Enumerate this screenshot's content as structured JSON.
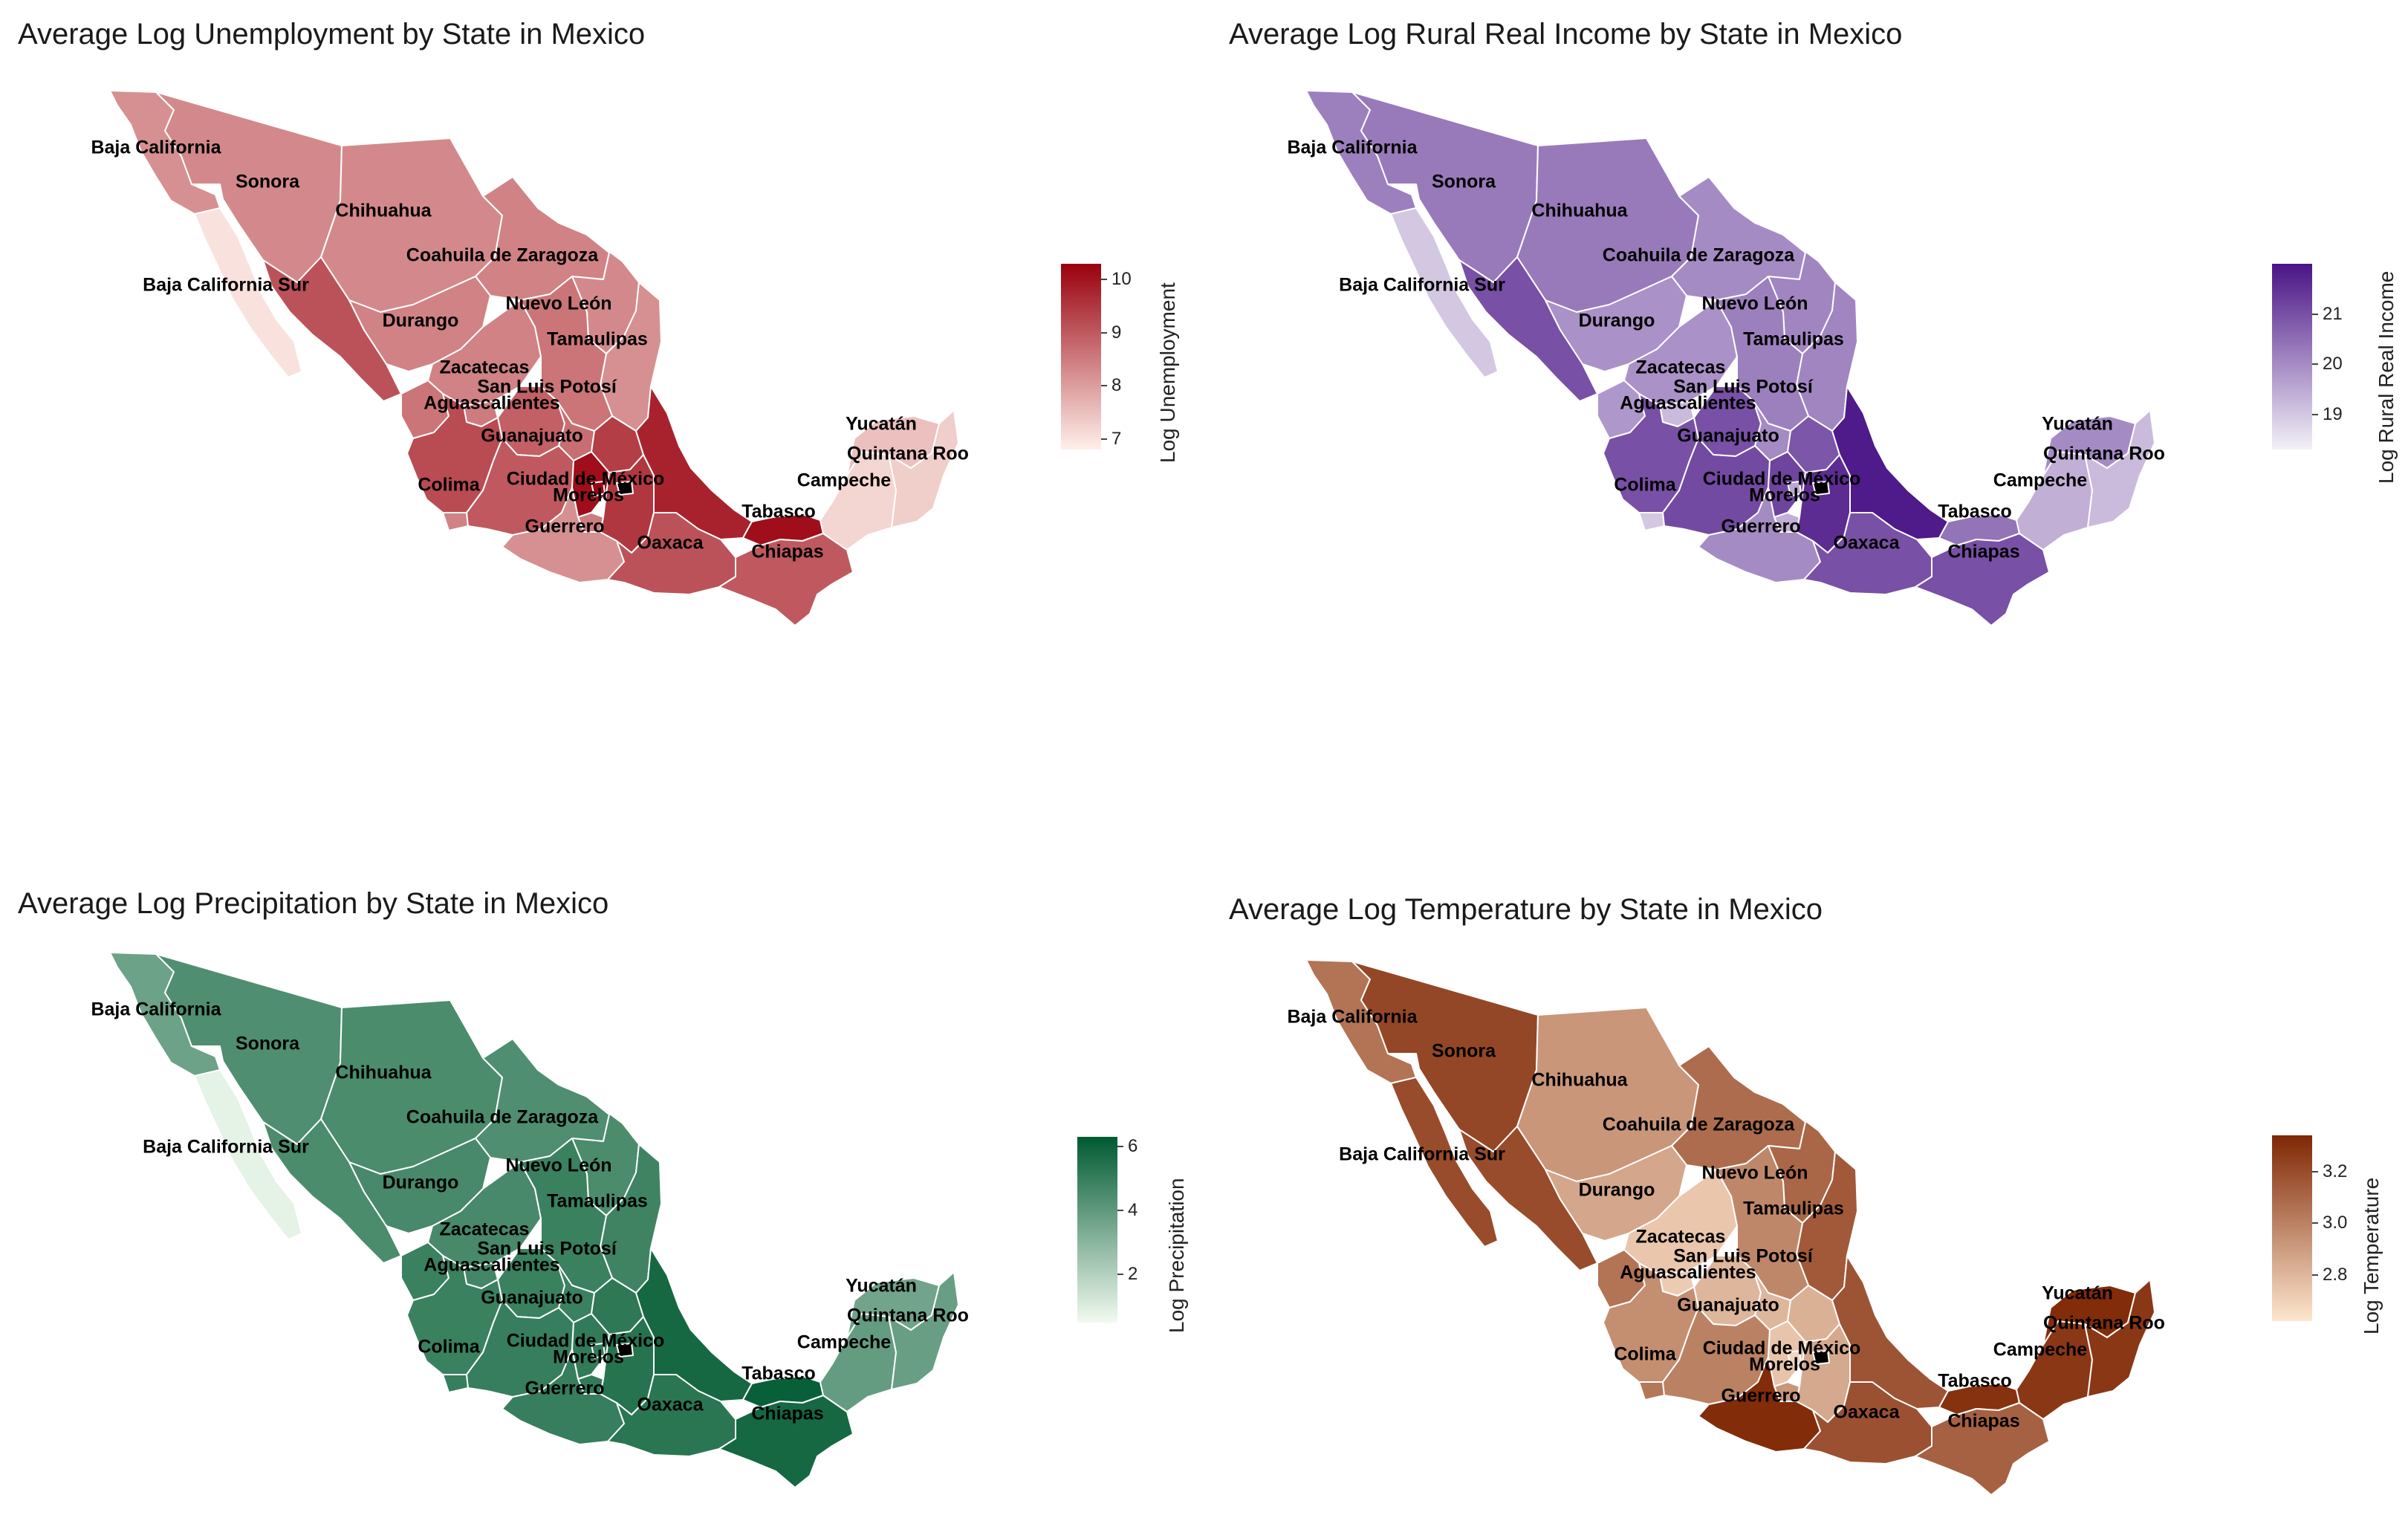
{
  "state_names": {
    "baja_california": "Baja California",
    "sonora": "Sonora",
    "chihuahua": "Chihuahua",
    "coahuila": "Coahuila de Zaragoza",
    "baja_california_sur": "Baja California Sur",
    "nuevo_leon": "Nuevo León",
    "durango": "Durango",
    "tamaulipas": "Tamaulipas",
    "zacatecas": "Zacatecas",
    "san_luis_potosi": "San Luis Potosí",
    "aguascalientes": "Aguascalientes",
    "guanajuato": "Guanajuato",
    "colima": "Colima",
    "ciudad_de_mexico": "Ciudad de México",
    "morelos": "Morelos",
    "guerrero": "Guerrero",
    "oaxaca": "Oaxaca",
    "chiapas": "Chiapas",
    "tabasco": "Tabasco",
    "campeche": "Campeche",
    "yucatan": "Yucatán",
    "quintana_roo": "Quintana Roo"
  },
  "maps": [
    {
      "title": "Average Log Unemployment by State in Mexico",
      "legend_title": "Log Unemployment",
      "legend_ticks": [
        "7",
        "8",
        "9",
        "10"
      ],
      "tick_values": [
        7,
        8,
        9,
        10
      ],
      "range": [
        6.8,
        10.3
      ],
      "color_low": "#fff0ea",
      "color_high": "#99000d",
      "values": {
        "baja_california": 8.2,
        "sonora": 8.3,
        "chihuahua": 8.3,
        "coahuila": 8.4,
        "baja_california_sur": 7.0,
        "nuevo_leon": 8.3,
        "durango": 8.4,
        "tamaulipas": 8.2,
        "zacatecas": 8.4,
        "san_luis_potosi": 8.6,
        "aguascalientes": 8.5,
        "guanajuato": 8.9,
        "colima": 8.4,
        "ciudad_de_mexico": 10.2,
        "morelos": 8.5,
        "guerrero": 8.2,
        "oaxaca": 9.1,
        "chiapas": 9.0,
        "tabasco": 10.1,
        "campeche": 7.2,
        "yucatan": 7.5,
        "quintana_roo": 7.3,
        "veracruz": 9.8,
        "sinaloa": 9.1,
        "nayarit": 8.6,
        "jalisco": 9.2,
        "michoacan": 9.0,
        "estado_de_mexico": 10.1,
        "puebla": 9.5,
        "hidalgo": 9.4,
        "queretaro": 8.7
      }
    },
    {
      "title": "Average Log Rural Real Income by State in Mexico",
      "legend_title": "Log Rural Real Income",
      "legend_ticks": [
        "19",
        "20",
        "21"
      ],
      "tick_values": [
        19,
        20,
        21
      ],
      "range": [
        18.3,
        22.0
      ],
      "color_low": "#f3f1f8",
      "color_high": "#4a1486",
      "values": {
        "baja_california": 20.2,
        "sonora": 20.3,
        "chihuahua": 20.3,
        "coahuila": 20.0,
        "baja_california_sur": 19.0,
        "nuevo_leon": 20.1,
        "durango": 19.9,
        "tamaulipas": 20.1,
        "zacatecas": 19.9,
        "san_luis_potosi": 20.2,
        "aguascalientes": 19.2,
        "guanajuato": 21.0,
        "colima": 19.0,
        "ciudad_de_mexico": 19.5,
        "morelos": 19.4,
        "guerrero": 20.0,
        "oaxaca": 21.0,
        "chiapas": 21.0,
        "tabasco": 20.4,
        "campeche": 19.4,
        "yucatan": 20.0,
        "quintana_roo": 19.2,
        "veracruz": 21.9,
        "sinaloa": 21.0,
        "nayarit": 19.8,
        "jalisco": 21.0,
        "michoacan": 21.1,
        "estado_de_mexico": 21.2,
        "puebla": 21.6,
        "hidalgo": 20.9,
        "queretaro": 20.0
      }
    },
    {
      "title": "Average Log Precipitation by State in Mexico",
      "legend_title": "Log Precipitation",
      "legend_ticks": [
        "2",
        "4",
        "6"
      ],
      "tick_values": [
        2,
        4,
        6
      ],
      "range": [
        0.5,
        6.3
      ],
      "color_low": "#f2faf0",
      "color_high": "#005a32",
      "values": {
        "baja_california": 3.7,
        "sonora": 4.4,
        "chihuahua": 4.5,
        "coahuila": 4.4,
        "baja_california_sur": 0.8,
        "nuevo_leon": 4.5,
        "durango": 4.6,
        "tamaulipas": 4.8,
        "zacatecas": 4.6,
        "san_luis_potosi": 4.9,
        "aguascalientes": 4.7,
        "guanajuato": 4.9,
        "colima": 5.0,
        "ciudad_de_mexico": 5.1,
        "morelos": 5.1,
        "guerrero": 5.0,
        "oaxaca": 5.3,
        "chiapas": 5.8,
        "tabasco": 6.1,
        "campeche": 3.9,
        "yucatan": 3.6,
        "quintana_roo": 3.8,
        "veracruz": 5.8,
        "sinaloa": 4.5,
        "nayarit": 4.9,
        "jalisco": 4.9,
        "michoacan": 5.0,
        "estado_de_mexico": 5.1,
        "puebla": 5.4,
        "hidalgo": 5.2,
        "queretaro": 4.9
      }
    },
    {
      "title": "Average Log Temperature by State in Mexico",
      "legend_title": "Log Temperature",
      "legend_ticks": [
        "2.8",
        "3.0",
        "3.2"
      ],
      "tick_values": [
        2.8,
        3.0,
        3.2
      ],
      "range": [
        2.62,
        3.34
      ],
      "color_low": "#fee6ce",
      "color_high": "#7f2704",
      "values": {
        "baja_california": 3.05,
        "sonora": 3.22,
        "chihuahua": 2.92,
        "coahuila": 3.08,
        "baja_california_sur": 3.2,
        "nuevo_leon": 3.1,
        "durango": 2.86,
        "tamaulipas": 3.15,
        "zacatecas": 2.74,
        "san_luis_potosi": 2.98,
        "aguascalientes": 2.72,
        "guanajuato": 2.8,
        "colima": 3.04,
        "ciudad_de_mexico": 2.68,
        "morelos": 2.92,
        "guerrero": 3.32,
        "oaxaca": 3.18,
        "chiapas": 3.12,
        "tabasco": 3.3,
        "campeche": 3.28,
        "yucatan": 3.32,
        "quintana_roo": 3.28,
        "veracruz": 3.17,
        "sinaloa": 3.2,
        "nayarit": 3.05,
        "jalisco": 2.95,
        "michoacan": 3.0,
        "estado_de_mexico": 2.75,
        "puebla": 2.85,
        "hidalgo": 2.82,
        "queretaro": 2.8
      }
    }
  ]
}
